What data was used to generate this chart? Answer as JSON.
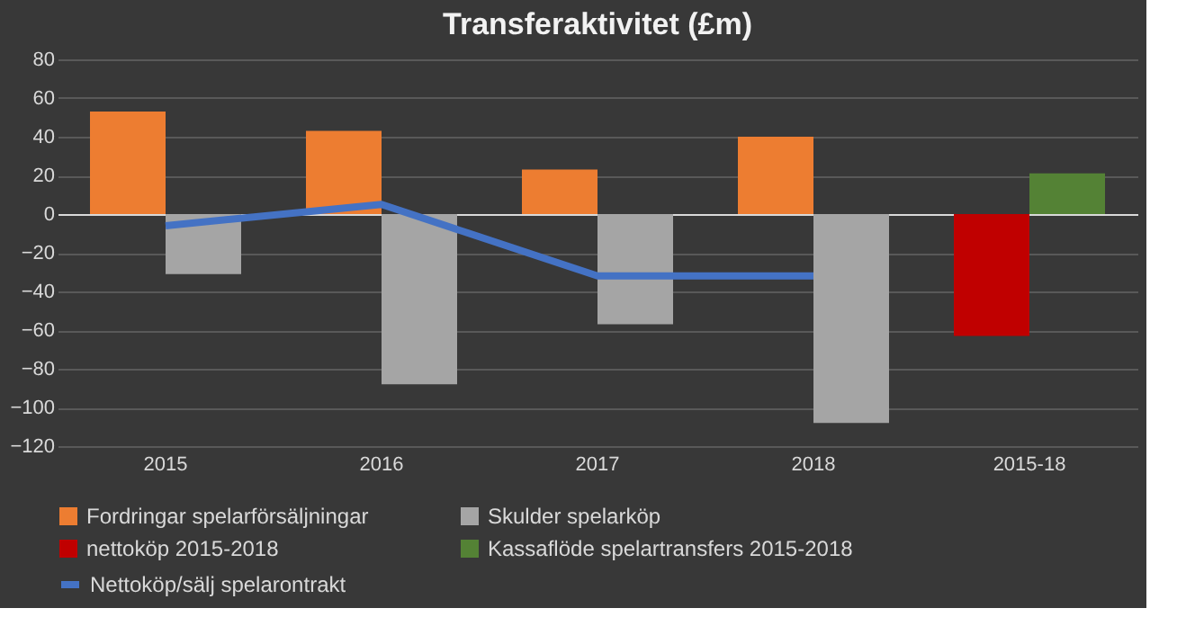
{
  "chart_data": {
    "type": "bar",
    "title": "Transferaktivitet  (£m)",
    "categories": [
      "2015",
      "2016",
      "2017",
      "2018",
      "2015-18"
    ],
    "series": [
      {
        "name": "Fordringar spelarförsäljningar",
        "color": "#ed7d31",
        "values": [
          53,
          43,
          23,
          40,
          null
        ]
      },
      {
        "name": "Skulder spelarköp",
        "color": "#a5a5a5",
        "values": [
          -31,
          -88,
          -57,
          -108,
          null
        ]
      },
      {
        "name": "nettoköp 2015-2018",
        "color": "#c00000",
        "values": [
          null,
          null,
          null,
          null,
          -63
        ]
      },
      {
        "name": "Kassaflöde spelartransfers 2015-2018",
        "color": "#548235",
        "values": [
          null,
          null,
          null,
          null,
          21
        ]
      },
      {
        "name": "Nettoköp/sälj spelarontrakt",
        "color": "#4472c4",
        "type": "line",
        "values": [
          -6,
          5,
          -32,
          -32,
          null
        ]
      }
    ],
    "ylim": [
      -120,
      80
    ],
    "yticks": [
      -120,
      -100,
      -80,
      -60,
      -40,
      -20,
      0,
      20,
      40,
      60,
      80
    ],
    "grid": "y",
    "legend": "bottom"
  }
}
